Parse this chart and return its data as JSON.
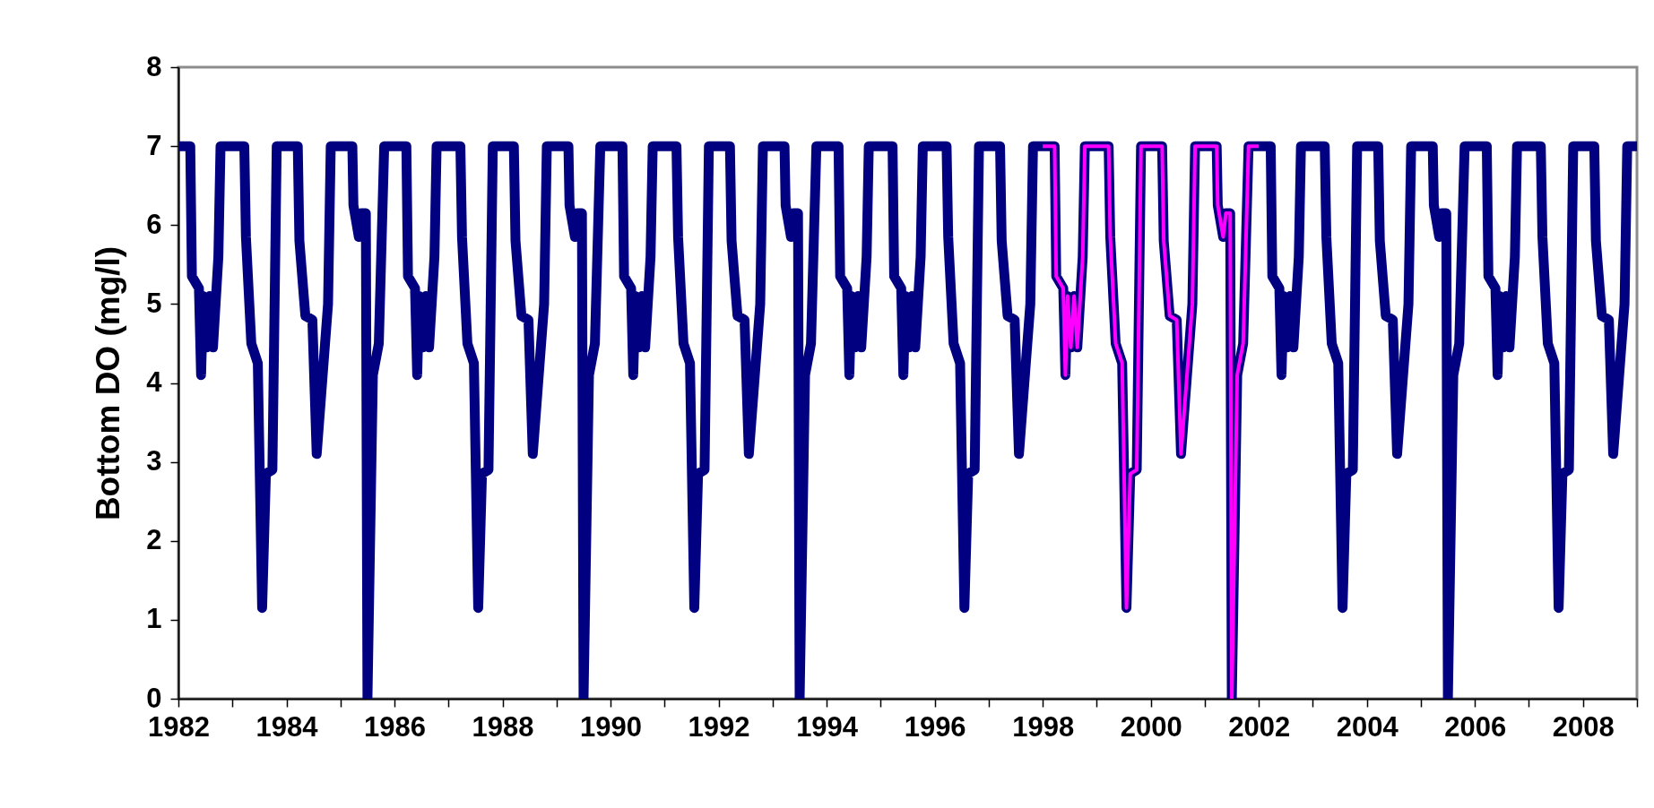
{
  "chart_data": {
    "type": "line",
    "ylabel": "Bottom DO (mg/l)",
    "xlim": [
      1982,
      2009
    ],
    "ylim": [
      0,
      8
    ],
    "yticks": [
      0,
      1,
      2,
      3,
      4,
      5,
      6,
      7,
      8
    ],
    "xticks": [
      1982,
      {
        "value": 1983,
        "label": null
      },
      1984,
      {
        "value": 1985,
        "label": null
      },
      1986,
      {
        "value": 1987,
        "label": null
      },
      1988,
      {
        "value": 1989,
        "label": null
      },
      1990,
      {
        "value": 1991,
        "label": null
      },
      1992,
      {
        "value": 1993,
        "label": null
      },
      1994,
      {
        "value": 1995,
        "label": null
      },
      1996,
      {
        "value": 1997,
        "label": null
      },
      1998,
      {
        "value": 1999,
        "label": null
      },
      2000,
      {
        "value": 2001,
        "label": null
      },
      2002,
      {
        "value": 2003,
        "label": null
      },
      2004,
      {
        "value": 2005,
        "label": null
      },
      2006,
      {
        "value": 2007,
        "label": null
      },
      2008,
      {
        "value": 2009,
        "label": null
      }
    ],
    "grid": false,
    "marker": "none",
    "line_style": "solid",
    "series": [
      {
        "color": "#000080",
        "x": [
          1982,
          1982.22,
          1982.25,
          1982.38,
          1982.42,
          1982.46,
          1982.52,
          1982.58,
          1982.64,
          1982.74,
          1982.78,
          1983,
          1983.22,
          1983.25,
          1983.35,
          1983.47,
          1983.55,
          1983.62,
          1983.74,
          1983.82,
          1984,
          1984.21,
          1984.24,
          1984.35,
          1984.48,
          1984.56,
          1984.77,
          1984.82,
          1985,
          1985.22,
          1985.24,
          1985.34,
          1985.39,
          1985.47,
          1985.5,
          1985.6,
          1985.71,
          1985.81,
          1986,
          1986.22,
          1986.25,
          1986.38,
          1986.42,
          1986.46,
          1986.52,
          1986.58,
          1986.64,
          1986.74,
          1986.78,
          1987,
          1987.22,
          1987.25,
          1987.35,
          1987.47,
          1987.55,
          1987.62,
          1987.74,
          1987.82,
          1988,
          1988.21,
          1988.24,
          1988.35,
          1988.48,
          1988.56,
          1988.77,
          1988.82,
          1989,
          1989.22,
          1989.24,
          1989.34,
          1989.39,
          1989.47,
          1989.5,
          1989.6,
          1989.71,
          1989.81,
          1990,
          1990.22,
          1990.25,
          1990.38,
          1990.42,
          1990.46,
          1990.52,
          1990.58,
          1990.64,
          1990.74,
          1990.78,
          1991,
          1991.22,
          1991.25,
          1991.35,
          1991.47,
          1991.55,
          1991.62,
          1991.74,
          1991.82,
          1992,
          1992.21,
          1992.24,
          1992.35,
          1992.48,
          1992.56,
          1992.77,
          1992.82,
          1993,
          1993.22,
          1993.24,
          1993.34,
          1993.39,
          1993.47,
          1993.5,
          1993.6,
          1993.71,
          1993.81,
          1994,
          1994.22,
          1994.25,
          1994.38,
          1994.42,
          1994.46,
          1994.52,
          1994.58,
          1994.64,
          1994.74,
          1994.78,
          1995,
          1995.22,
          1995.25,
          1995.38,
          1995.42,
          1995.46,
          1995.52,
          1995.58,
          1995.64,
          1995.74,
          1995.78,
          1996,
          1996.22,
          1996.25,
          1996.35,
          1996.47,
          1996.55,
          1996.62,
          1996.74,
          1996.82,
          1997,
          1997.21,
          1997.24,
          1997.35,
          1997.48,
          1997.56,
          1997.77,
          1997.82,
          1998,
          1998.22,
          1998.25,
          1998.38,
          1998.42,
          1998.46,
          1998.52,
          1998.58,
          1998.64,
          1998.74,
          1998.78,
          1999,
          1999.22,
          1999.25,
          1999.35,
          1999.47,
          1999.55,
          1999.62,
          1999.74,
          1999.82,
          2000,
          2000.21,
          2000.24,
          2000.35,
          2000.48,
          2000.56,
          2000.77,
          2000.82,
          2001,
          2001.22,
          2001.24,
          2001.34,
          2001.39,
          2001.47,
          2001.5,
          2001.6,
          2001.71,
          2001.81,
          2002,
          2002.22,
          2002.25,
          2002.38,
          2002.42,
          2002.46,
          2002.52,
          2002.58,
          2002.64,
          2002.74,
          2002.78,
          2003,
          2003.22,
          2003.25,
          2003.35,
          2003.47,
          2003.55,
          2003.62,
          2003.74,
          2003.82,
          2004,
          2004.21,
          2004.24,
          2004.35,
          2004.48,
          2004.56,
          2004.77,
          2004.82,
          2005,
          2005.22,
          2005.24,
          2005.34,
          2005.39,
          2005.47,
          2005.5,
          2005.6,
          2005.71,
          2005.81,
          2006,
          2006.22,
          2006.25,
          2006.38,
          2006.42,
          2006.46,
          2006.52,
          2006.58,
          2006.64,
          2006.74,
          2006.78,
          2007,
          2007.22,
          2007.25,
          2007.35,
          2007.47,
          2007.55,
          2007.62,
          2007.74,
          2007.82,
          2008,
          2008.21,
          2008.24,
          2008.35,
          2008.48,
          2008.56,
          2008.77,
          2008.82,
          2009
        ],
        "values": [
          7,
          7,
          5.35,
          5.2,
          4.1,
          5.1,
          4.45,
          5.1,
          4.45,
          5.6,
          7,
          7,
          7,
          5.85,
          4.5,
          4.25,
          1.15,
          2.85,
          2.9,
          7,
          7,
          7,
          5.8,
          4.85,
          4.8,
          3.1,
          5,
          7,
          7,
          7,
          6.25,
          5.85,
          6.15,
          6.15,
          0,
          4.1,
          4.5,
          7,
          7,
          7,
          5.35,
          5.2,
          4.1,
          5.1,
          4.45,
          5.1,
          4.45,
          5.6,
          7,
          7,
          7,
          5.85,
          4.5,
          4.25,
          1.15,
          2.85,
          2.9,
          7,
          7,
          7,
          5.8,
          4.85,
          4.8,
          3.1,
          5,
          7,
          7,
          7,
          6.25,
          5.85,
          6.15,
          6.15,
          0,
          4.1,
          4.5,
          7,
          7,
          7,
          5.35,
          5.2,
          4.1,
          5.1,
          4.45,
          5.1,
          4.45,
          5.6,
          7,
          7,
          7,
          5.85,
          4.5,
          4.25,
          1.15,
          2.85,
          2.9,
          7,
          7,
          7,
          5.8,
          4.85,
          4.8,
          3.1,
          5,
          7,
          7,
          7,
          6.25,
          5.85,
          6.15,
          6.15,
          0,
          4.1,
          4.5,
          7,
          7,
          7,
          5.35,
          5.2,
          4.1,
          5.1,
          4.45,
          5.1,
          4.45,
          5.6,
          7,
          7,
          7,
          5.35,
          5.2,
          4.1,
          5.1,
          4.45,
          5.1,
          4.45,
          5.6,
          7,
          7,
          7,
          5.85,
          4.5,
          4.25,
          1.15,
          2.85,
          2.9,
          7,
          7,
          7,
          5.8,
          4.85,
          4.8,
          3.1,
          5,
          7,
          7,
          7,
          5.35,
          5.2,
          4.1,
          5.1,
          4.45,
          5.1,
          4.45,
          5.6,
          7,
          7,
          7,
          5.85,
          4.5,
          4.25,
          1.15,
          2.85,
          2.9,
          7,
          7,
          7,
          5.8,
          4.85,
          4.8,
          3.1,
          5,
          7,
          7,
          7,
          6.25,
          5.85,
          6.15,
          6.15,
          0,
          4.1,
          4.5,
          7,
          7,
          7,
          5.35,
          5.2,
          4.1,
          5.1,
          4.45,
          5.1,
          4.45,
          5.6,
          7,
          7,
          7,
          5.85,
          4.5,
          4.25,
          1.15,
          2.85,
          2.9,
          7,
          7,
          7,
          5.8,
          4.85,
          4.8,
          3.1,
          5,
          7,
          7,
          7,
          6.25,
          5.85,
          6.15,
          6.15,
          0,
          4.1,
          4.5,
          7,
          7,
          7,
          5.35,
          5.2,
          4.1,
          5.1,
          4.45,
          5.1,
          4.45,
          5.6,
          7,
          7,
          7,
          5.85,
          4.5,
          4.25,
          1.15,
          2.85,
          2.9,
          7,
          7,
          7,
          5.8,
          4.85,
          4.8,
          3.1,
          5,
          7,
          7
        ]
      },
      {
        "color": "#ff00ff",
        "x": [
          1998,
          1998.22,
          1998.25,
          1998.38,
          1998.42,
          1998.46,
          1998.52,
          1998.58,
          1998.64,
          1998.74,
          1998.78,
          1999,
          1999.22,
          1999.25,
          1999.35,
          1999.47,
          1999.55,
          1999.62,
          1999.74,
          1999.82,
          2000,
          2000.21,
          2000.24,
          2000.35,
          2000.48,
          2000.56,
          2000.77,
          2000.82,
          2001,
          2001.22,
          2001.24,
          2001.34,
          2001.39,
          2001.47,
          2001.5,
          2001.6,
          2001.71,
          2001.81,
          2002
        ],
        "values": [
          7,
          7,
          5.35,
          5.2,
          4.1,
          5.1,
          4.45,
          5.1,
          4.45,
          5.6,
          7,
          7,
          7,
          5.85,
          4.5,
          4.25,
          1.15,
          2.85,
          2.9,
          7,
          7,
          7,
          5.8,
          4.85,
          4.8,
          3.1,
          5,
          7,
          7,
          7,
          6.25,
          5.85,
          6.15,
          6.15,
          0,
          4.1,
          4.5,
          7,
          7
        ]
      }
    ]
  }
}
